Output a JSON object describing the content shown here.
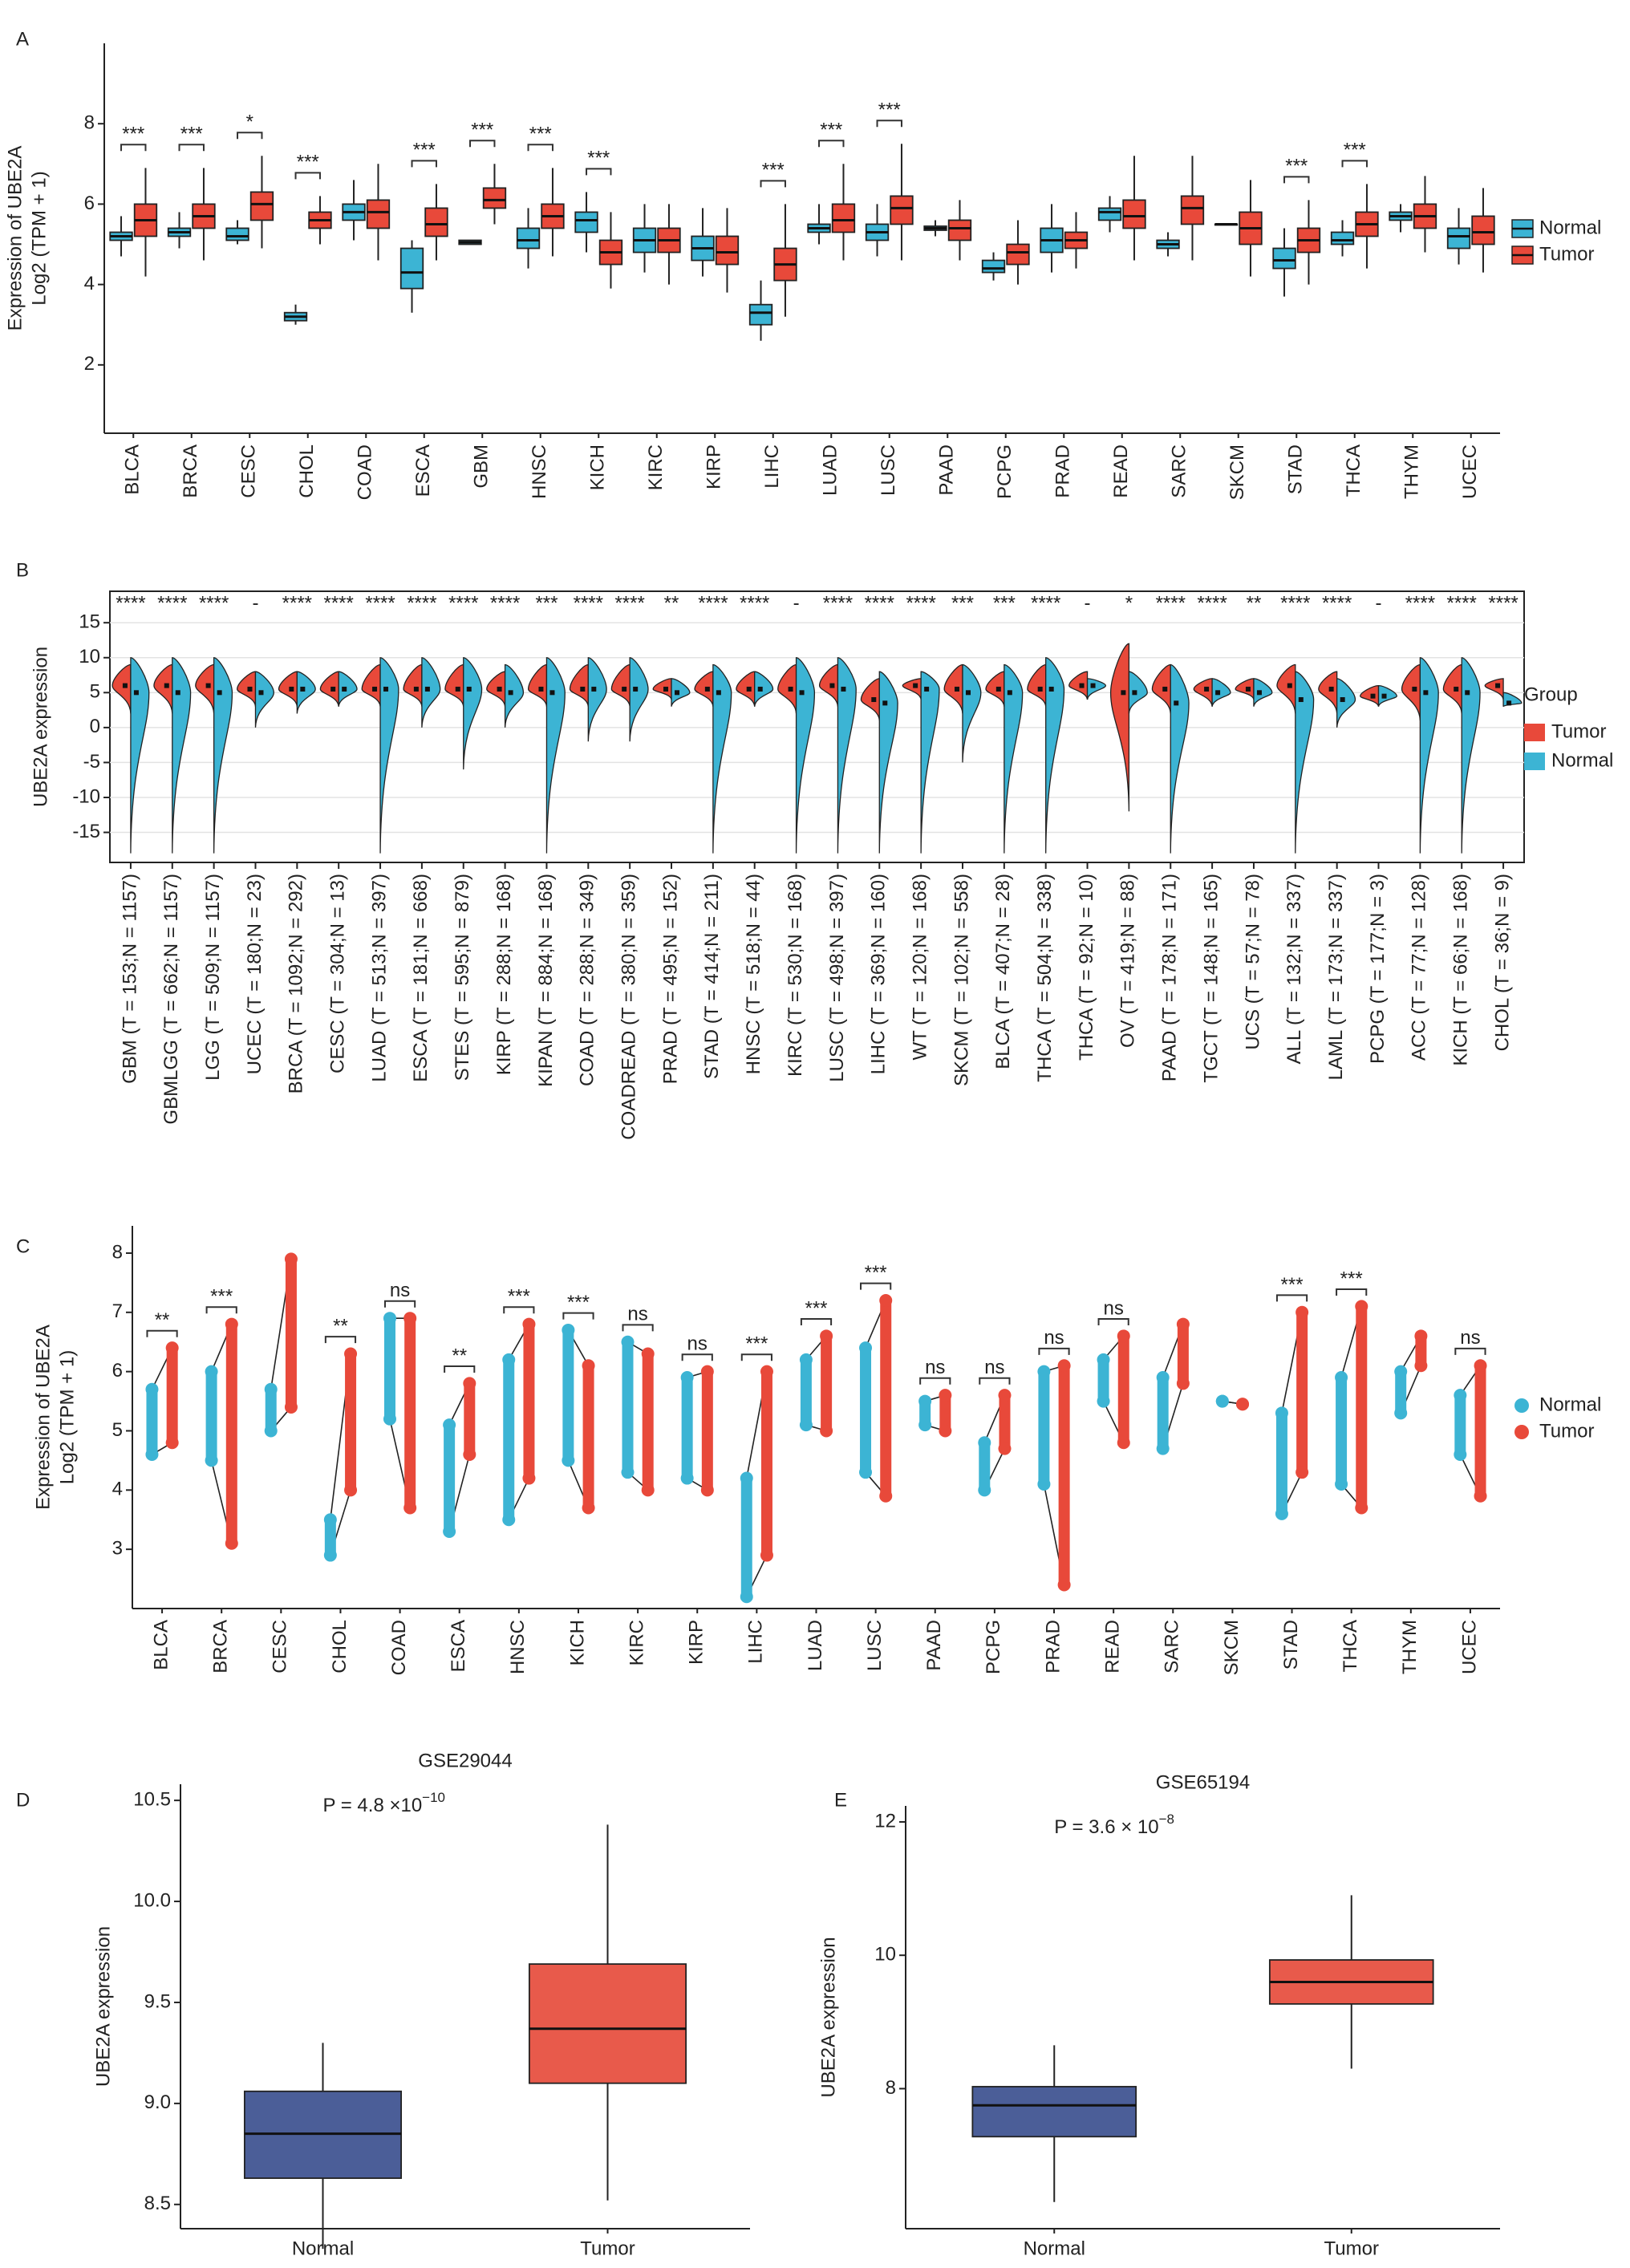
{
  "chart_data": [
    {
      "type": "box",
      "panel": "A",
      "ylabel": "Expression of UBE2A",
      "ylabel2": "Log2 (TPM + 1)",
      "categories": [
        "BLCA",
        "BRCA",
        "CESC",
        "CHOL",
        "COAD",
        "ESCA",
        "GBM",
        "HNSC",
        "KICH",
        "KIRC",
        "KIRP",
        "LIHC",
        "LUAD",
        "LUSC",
        "PAAD",
        "PCPG",
        "PRAD",
        "READ",
        "SARC",
        "SKCM",
        "STAD",
        "THCA",
        "THYM",
        "UCEC"
      ],
      "series": [
        {
          "name": "Normal",
          "color": "#3cb4d4",
          "min": [
            4.7,
            4.9,
            5.0,
            3.0,
            5.1,
            3.3,
            5.0,
            4.4,
            4.8,
            4.3,
            4.2,
            2.6,
            5.0,
            4.7,
            5.2,
            4.1,
            4.3,
            5.3,
            4.7,
            5.5,
            3.7,
            4.7,
            5.3,
            4.5
          ],
          "q1": [
            5.1,
            5.2,
            5.1,
            3.1,
            5.6,
            3.9,
            5.0,
            4.9,
            5.3,
            4.8,
            4.6,
            3.0,
            5.3,
            5.1,
            5.35,
            4.3,
            4.8,
            5.6,
            4.9,
            5.5,
            4.4,
            5.0,
            5.6,
            4.9
          ],
          "median": [
            5.2,
            5.3,
            5.2,
            3.2,
            5.8,
            4.3,
            5.05,
            5.1,
            5.6,
            5.1,
            4.9,
            3.3,
            5.4,
            5.3,
            5.4,
            4.4,
            5.1,
            5.8,
            5.0,
            5.5,
            4.6,
            5.1,
            5.7,
            5.2
          ],
          "q3": [
            5.3,
            5.4,
            5.4,
            3.3,
            6.0,
            4.9,
            5.1,
            5.4,
            5.8,
            5.4,
            5.2,
            3.5,
            5.5,
            5.5,
            5.45,
            4.6,
            5.4,
            5.9,
            5.1,
            5.5,
            4.9,
            5.3,
            5.8,
            5.4
          ],
          "max": [
            5.7,
            5.8,
            5.6,
            3.5,
            6.6,
            5.1,
            5.1,
            5.9,
            6.3,
            6.0,
            5.9,
            4.1,
            6.0,
            6.0,
            5.6,
            4.8,
            6.0,
            6.2,
            5.3,
            5.5,
            5.4,
            5.6,
            6.0,
            5.9
          ]
        },
        {
          "name": "Tumor",
          "color": "#e8493a",
          "min": [
            4.2,
            4.6,
            4.9,
            5.0,
            4.6,
            4.6,
            5.5,
            4.7,
            3.9,
            4.0,
            3.8,
            3.2,
            4.6,
            4.6,
            4.6,
            4.0,
            4.4,
            4.6,
            4.6,
            4.2,
            4.0,
            4.4,
            4.8,
            4.3
          ],
          "q1": [
            5.2,
            5.4,
            5.6,
            5.4,
            5.4,
            5.2,
            5.9,
            5.4,
            4.5,
            4.8,
            4.5,
            4.1,
            5.3,
            5.5,
            5.1,
            4.5,
            4.9,
            5.4,
            5.5,
            5.0,
            4.8,
            5.2,
            5.4,
            5.0
          ],
          "median": [
            5.6,
            5.7,
            6.0,
            5.6,
            5.8,
            5.5,
            6.1,
            5.7,
            4.8,
            5.1,
            4.8,
            4.5,
            5.6,
            5.9,
            5.4,
            4.8,
            5.1,
            5.7,
            5.9,
            5.4,
            5.1,
            5.5,
            5.7,
            5.3
          ],
          "q3": [
            6.0,
            6.0,
            6.3,
            5.8,
            6.1,
            5.9,
            6.4,
            6.0,
            5.1,
            5.4,
            5.2,
            4.9,
            6.0,
            6.2,
            5.6,
            5.0,
            5.3,
            6.1,
            6.2,
            5.8,
            5.4,
            5.8,
            6.0,
            5.7
          ],
          "max": [
            6.9,
            6.9,
            7.2,
            6.2,
            7.0,
            6.5,
            7.0,
            6.9,
            5.8,
            6.0,
            5.9,
            6.0,
            7.0,
            7.5,
            6.1,
            5.6,
            5.8,
            7.2,
            7.2,
            6.6,
            6.1,
            6.5,
            6.7,
            6.4
          ]
        }
      ],
      "significance": [
        "***",
        "***",
        "*",
        "***",
        null,
        "***",
        "***",
        "***",
        "***",
        null,
        null,
        "***",
        "***",
        "***",
        null,
        null,
        null,
        null,
        null,
        null,
        "***",
        "***",
        null,
        null
      ],
      "ylim": [
        0.3,
        10
      ],
      "yticks": [
        2,
        4,
        6,
        8
      ],
      "grid": false
    },
    {
      "type": "violin",
      "panel": "B",
      "ylabel": "UBE2A expression",
      "legend_title": "Group",
      "categories": [
        "GBM (T = 153;N = 1157)",
        "GBMLGG (T = 662;N = 1157)",
        "LGG (T = 509;N = 1157)",
        "UCEC (T = 180;N = 23)",
        "BRCA (T = 1092;N = 292)",
        "CESC (T = 304;N = 13)",
        "LUAD (T = 513;N = 397)",
        "ESCA (T = 181;N = 668)",
        "STES (T = 595;N = 879)",
        "KIRP (T = 288;N = 168)",
        "KIPAN (T = 884;N = 168)",
        "COAD (T = 288;N = 349)",
        "COADREAD (T = 380;N = 359)",
        "PRAD (T = 495;N = 152)",
        "STAD (T = 414;N = 211)",
        "HNSC (T = 518;N = 44)",
        "KIRC (T = 530;N = 168)",
        "LUSC (T = 498;N = 397)",
        "LIHC (T = 369;N = 160)",
        "WT (T = 120;N = 168)",
        "SKCM (T = 102;N = 558)",
        "BLCA (T = 407;N = 28)",
        "THCA (T = 504;N = 338)",
        "THCA (T = 92;N = 10)",
        "OV (T = 419;N = 88)",
        "PAAD (T = 178;N = 171)",
        "TGCT (T = 148;N = 165)",
        "UCS (T = 57;N = 78)",
        "ALL (T = 132;N = 337)",
        "LAML (T = 173;N = 337)",
        "PCPG (T = 177;N = 3)",
        "ACC (T = 77;N = 128)",
        "KICH (T = 66;N = 168)",
        "CHOL (T = 36;N = 9)"
      ],
      "series": [
        {
          "name": "Tumor",
          "color": "#e8493a",
          "min": [
            2,
            2,
            2,
            3,
            3,
            3,
            3,
            3,
            3,
            3,
            3,
            3,
            3,
            4,
            3,
            3,
            2,
            3,
            1,
            4,
            2,
            3,
            3,
            4,
            -12,
            2,
            3,
            4,
            2,
            2,
            3,
            1,
            2,
            4
          ],
          "median": [
            6,
            6,
            6,
            5.5,
            5.5,
            5.5,
            5.5,
            5.5,
            5.5,
            5.5,
            5.5,
            5.5,
            5.5,
            5.5,
            5.5,
            5.5,
            5.5,
            6,
            4,
            6,
            5.5,
            5.5,
            5.5,
            6,
            5,
            5.5,
            5.5,
            5.5,
            6,
            5.5,
            4.5,
            5.5,
            5.5,
            6
          ],
          "max": [
            9,
            9,
            9,
            8,
            8,
            8,
            9,
            9,
            9,
            8,
            9,
            9,
            9,
            7,
            8,
            8,
            9,
            9,
            7,
            7,
            9,
            8,
            9,
            8,
            12,
            9,
            7,
            7,
            9,
            8,
            6,
            9,
            9,
            7
          ]
        },
        {
          "name": "Normal",
          "color": "#3cb4d4",
          "min": [
            -18,
            -18,
            -18,
            0,
            2,
            3,
            -18,
            0,
            -6,
            0,
            -18,
            -2,
            -2,
            3,
            -18,
            3,
            -18,
            -18,
            -18,
            -18,
            -5,
            -18,
            -18,
            4,
            2,
            -18,
            3,
            3,
            -18,
            0,
            3,
            -18,
            -18,
            3
          ],
          "median": [
            5,
            5,
            5,
            5,
            5.5,
            5.5,
            5.5,
            5.5,
            5.5,
            5,
            5,
            5.5,
            5.5,
            5,
            5,
            5.5,
            5,
            5.5,
            3.5,
            5.5,
            5,
            5,
            5.5,
            6,
            5,
            3.5,
            5,
            5,
            4,
            4,
            4.5,
            5,
            5,
            3.5
          ],
          "max": [
            10,
            10,
            10,
            8,
            8,
            8,
            10,
            10,
            10,
            9,
            10,
            10,
            10,
            7,
            9,
            8,
            10,
            10,
            8,
            8,
            9,
            9,
            10,
            7,
            8,
            9,
            7,
            7,
            8,
            7,
            6,
            10,
            10,
            5
          ]
        }
      ],
      "significance": [
        "****",
        "****",
        "****",
        "-",
        "****",
        "****",
        "****",
        "****",
        "****",
        "****",
        "***",
        "****",
        "****",
        "**",
        "****",
        "****",
        "-",
        "****",
        "****",
        "****",
        "***",
        "***",
        "****",
        "-",
        "*",
        "****",
        "****",
        "**",
        "****",
        "****",
        "-",
        "****",
        "****",
        "****"
      ],
      "ylim": [
        -19.3,
        19.5
      ],
      "yticks": [
        -15,
        -10,
        -5,
        0,
        5,
        10,
        15
      ],
      "grid": true
    },
    {
      "type": "paired",
      "panel": "C",
      "ylabel": "Expression of UBE2A",
      "ylabel2": "Log2 (TPM + 1)",
      "categories": [
        "BLCA",
        "BRCA",
        "CESC",
        "CHOL",
        "COAD",
        "ESCA",
        "HNSC",
        "KICH",
        "KIRC",
        "KIRP",
        "LIHC",
        "LUAD",
        "LUSC",
        "PAAD",
        "PCPG",
        "PRAD",
        "READ",
        "SARC",
        "SKCM",
        "STAD",
        "THCA",
        "THYM",
        "UCEC"
      ],
      "series": [
        {
          "name": "Normal",
          "color": "#3cb4d4",
          "low": [
            4.6,
            4.5,
            5.0,
            2.9,
            5.2,
            3.3,
            3.5,
            4.5,
            4.3,
            4.2,
            2.2,
            5.1,
            4.3,
            5.1,
            4.0,
            4.1,
            5.5,
            4.7,
            5.5,
            3.6,
            4.1,
            5.3,
            4.6
          ],
          "high": [
            5.7,
            6.0,
            5.7,
            3.5,
            6.9,
            5.1,
            6.2,
            6.7,
            6.5,
            5.9,
            4.2,
            6.2,
            6.4,
            5.5,
            4.8,
            6.0,
            6.2,
            5.9,
            5.5,
            5.3,
            5.9,
            6.0,
            5.6
          ]
        },
        {
          "name": "Tumor",
          "color": "#e8493a",
          "low": [
            4.8,
            3.1,
            5.4,
            4.0,
            3.7,
            4.6,
            4.2,
            3.7,
            4.0,
            4.0,
            2.9,
            5.0,
            3.9,
            5.0,
            4.7,
            2.4,
            4.8,
            5.8,
            5.45,
            4.3,
            3.7,
            6.1,
            3.9
          ],
          "high": [
            6.4,
            6.8,
            7.9,
            6.3,
            6.9,
            5.8,
            6.8,
            6.1,
            6.3,
            6.0,
            6.0,
            6.6,
            7.2,
            5.6,
            5.6,
            6.1,
            6.6,
            6.8,
            5.45,
            7.0,
            7.1,
            6.6,
            6.1
          ]
        }
      ],
      "significance": [
        "**",
        "***",
        null,
        "**",
        "ns",
        "**",
        "***",
        "***",
        "ns",
        "ns",
        "***",
        "***",
        "***",
        "ns",
        "ns",
        "ns",
        "ns",
        null,
        null,
        "***",
        "***",
        null,
        "ns"
      ],
      "ylim": [
        2,
        8.46
      ],
      "yticks": [
        3,
        4,
        5,
        6,
        7,
        8
      ],
      "grid": false
    },
    {
      "type": "box",
      "panel": "D",
      "title": "GSE29044",
      "ylabel": "UBE2A expression",
      "annotation": "P = 4.8  ×10",
      "annotation_exp": "−10",
      "categories": [
        "Normal",
        "Tumor"
      ],
      "colors": [
        "#4b5e98",
        "#e85a4b"
      ],
      "min": [
        8.28,
        8.52
      ],
      "q1": [
        8.63,
        9.1
      ],
      "median": [
        8.85,
        9.37
      ],
      "q3": [
        9.06,
        9.69
      ],
      "max": [
        9.3,
        10.38
      ],
      "ylim": [
        8.38,
        10.58
      ],
      "yticks": [
        8.5,
        {
          "value": 9,
          "label": "9.0"
        },
        9.5,
        {
          "value": 10,
          "label": "10.0"
        },
        10.5
      ],
      "grid": false
    },
    {
      "type": "box",
      "panel": "E",
      "title": "GSE65194",
      "ylabel": "UBE2A expression",
      "annotation": "P = 3.6 × 10",
      "annotation_exp": "−8",
      "categories": [
        "Normal",
        "Tumor"
      ],
      "colors": [
        "#4b5e98",
        "#e85a4b"
      ],
      "min": [
        6.3,
        8.3
      ],
      "q1": [
        7.28,
        9.27
      ],
      "median": [
        7.75,
        9.6
      ],
      "q3": [
        8.03,
        9.93
      ],
      "max": [
        8.65,
        10.9
      ],
      "ylim": [
        5.9,
        12.24
      ],
      "yticks": [
        8,
        10,
        12
      ],
      "grid": false
    }
  ]
}
